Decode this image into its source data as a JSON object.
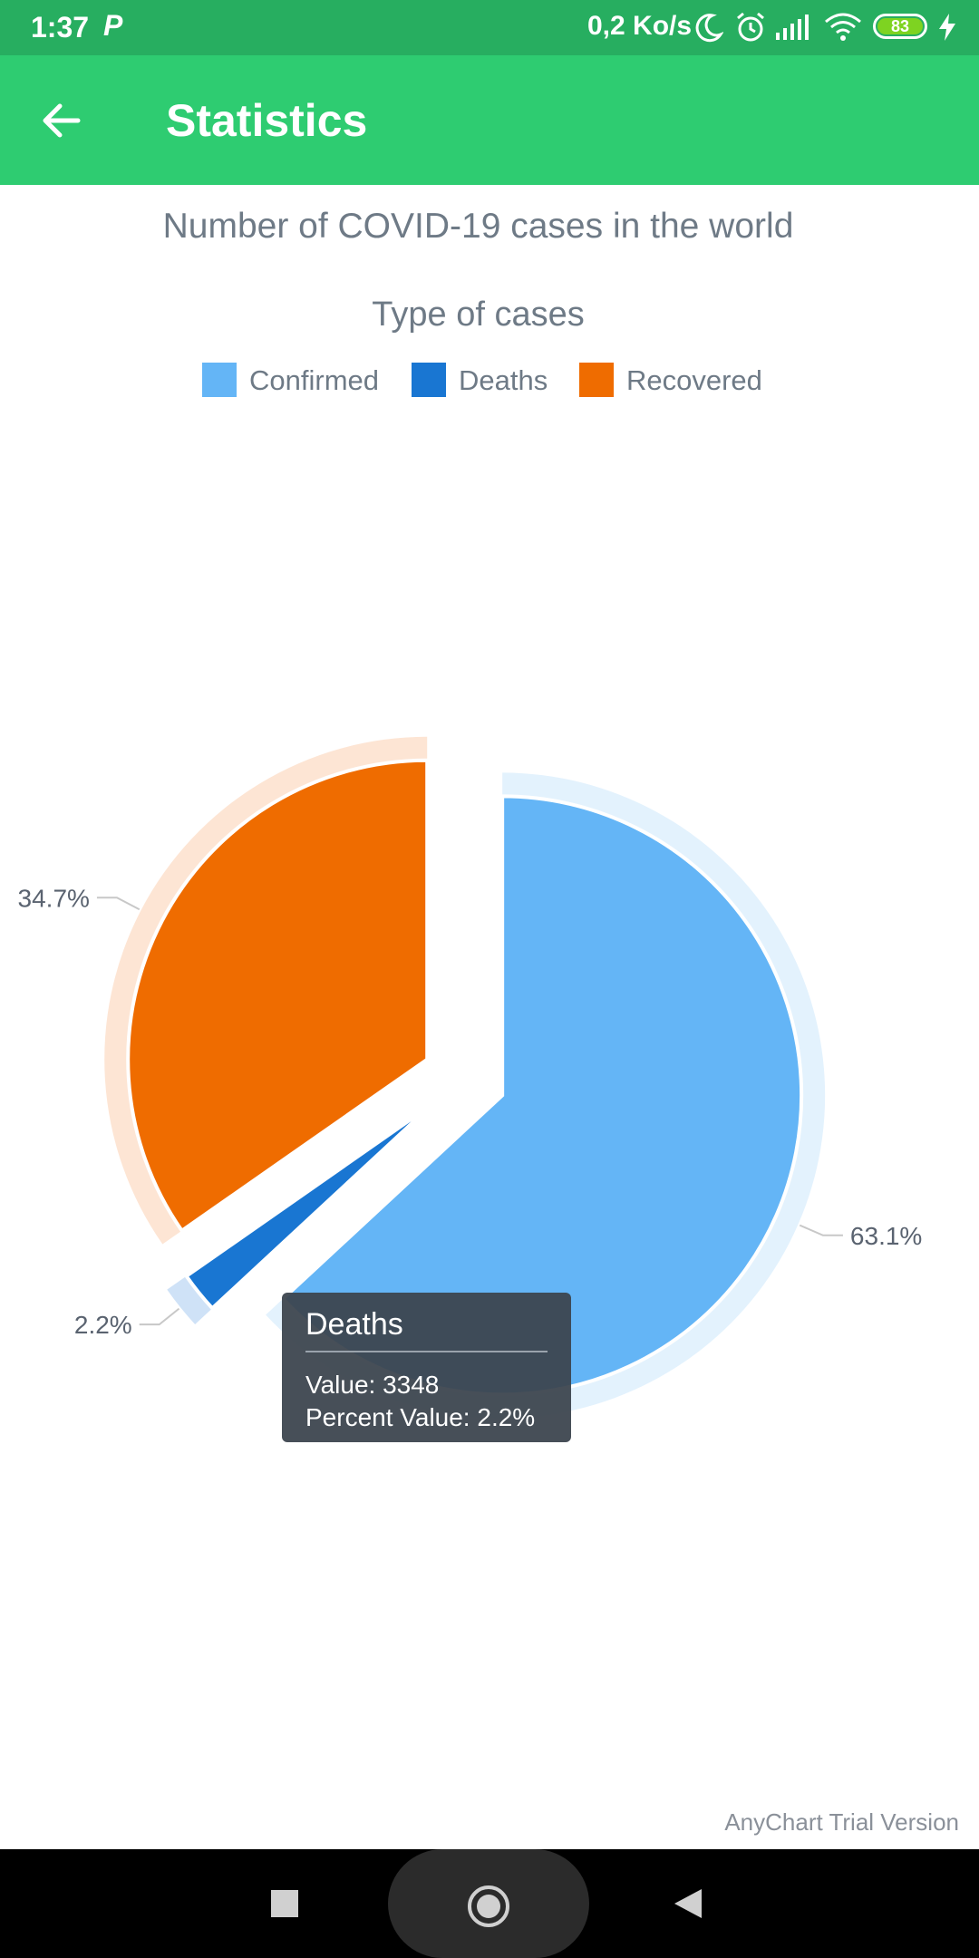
{
  "status_bar": {
    "time": "1:37",
    "app_icon": "P",
    "network_speed": "0,2 Ko/s",
    "battery": "83"
  },
  "app_bar": {
    "title": "Statistics",
    "back_icon": "arrow-left-icon"
  },
  "chart_data": {
    "type": "pie",
    "title": "Number of COVID-19 cases in the world",
    "legend_title": "Type of cases",
    "legend_position": "top",
    "categories": [
      "Confirmed",
      "Deaths",
      "Recovered"
    ],
    "values": [
      96033,
      3348,
      52812
    ],
    "percent_labels": [
      "63.1%",
      "2.2%",
      "34.7%"
    ],
    "colors": [
      "#64b5f6",
      "#1976d2",
      "#ef6c00"
    ],
    "exploded": [
      "Confirmed",
      "Deaths",
      "Recovered"
    ]
  },
  "tooltip": {
    "title": "Deaths",
    "value_line": "Value: 3348",
    "percent_line": "Percent Value: 2.2%"
  },
  "watermark": "AnyChart Trial Version",
  "nav_bar": {
    "recents_icon": "square-icon",
    "home_icon": "circle-icon",
    "back_icon": "triangle-back-icon"
  }
}
